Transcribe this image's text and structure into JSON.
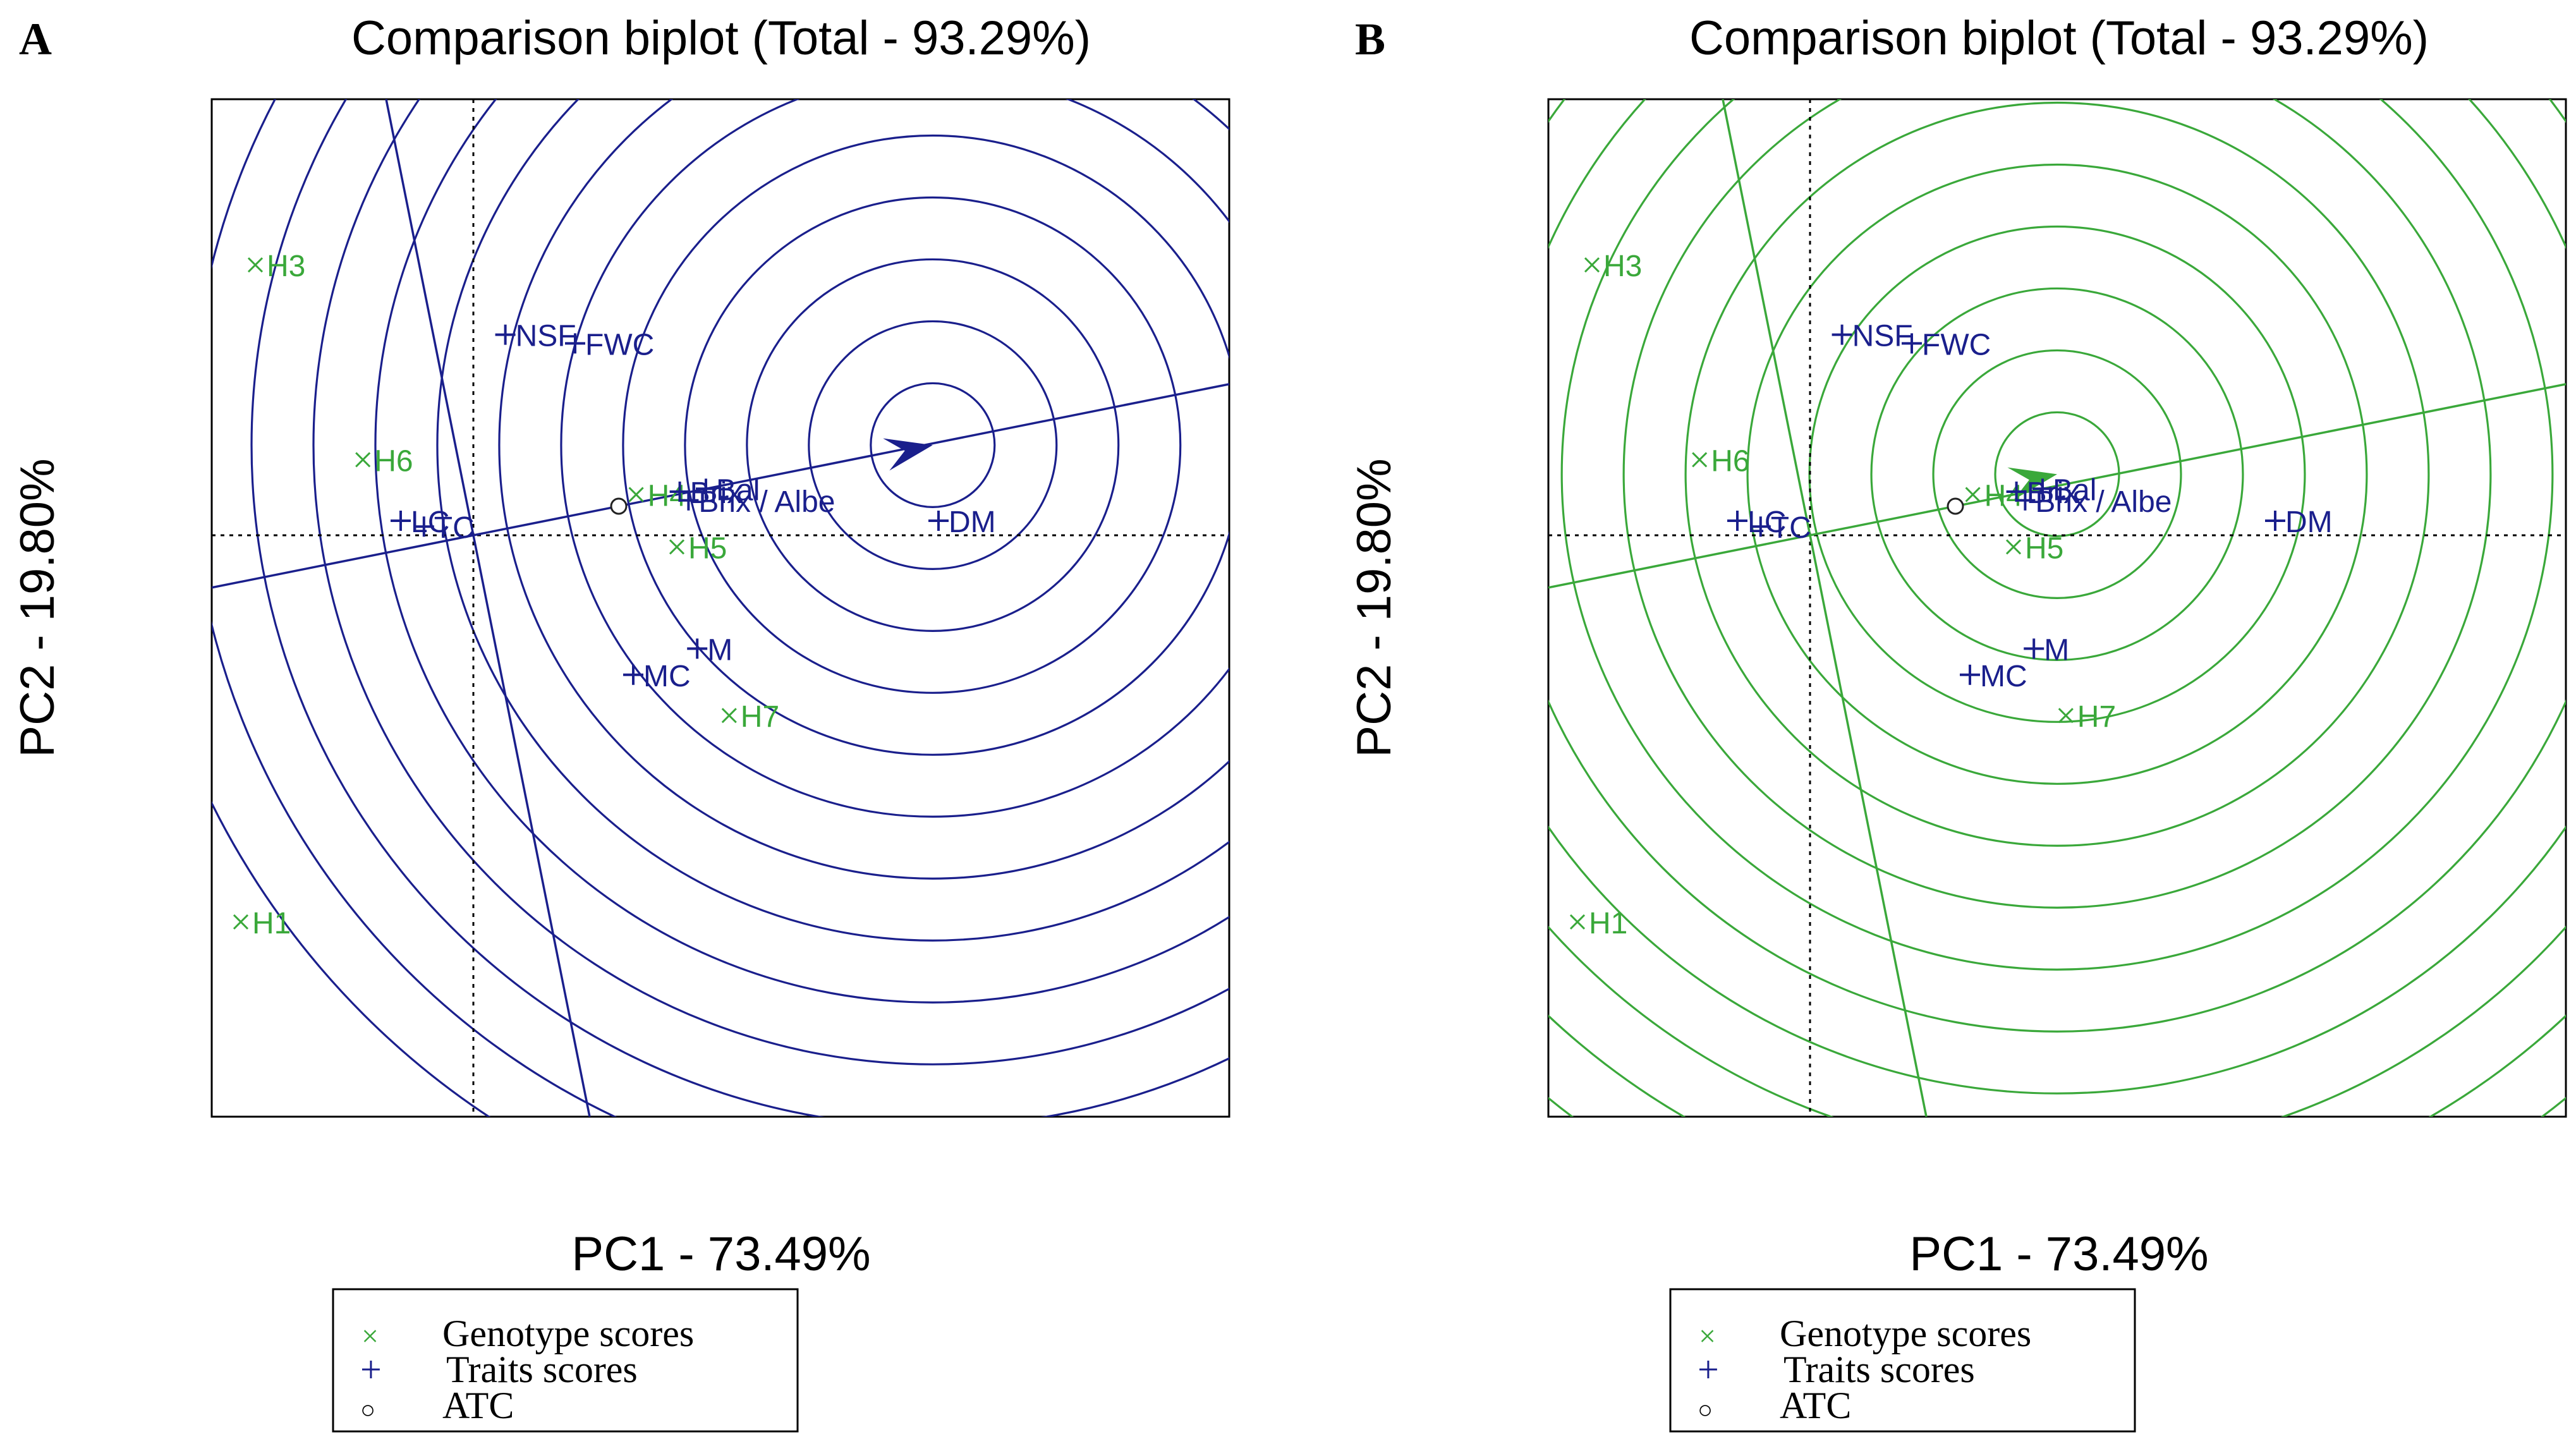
{
  "colors": {
    "trait": "#1a1f8c",
    "genotype": "#3aa83a",
    "circle_a": "#1a1f8c",
    "circle_b": "#3aa83a",
    "axis": "#000000"
  },
  "legend": {
    "genotype_label": "Genotype scores",
    "traits_label": "Traits scores",
    "atc_label": "ATC",
    "genotype_symbol": "×",
    "traits_symbol": "+",
    "atc_symbol": "○"
  },
  "chart_data": [
    {
      "panel_label": "A",
      "type": "scatter",
      "title": "Comparison biplot (Total - 93.29%)",
      "xlabel": "PC1 - 73.49%",
      "ylabel": "PC2 - 19.80%",
      "xlim": [
        -0.9,
        2.6
      ],
      "ylim": [
        -2.0,
        1.5
      ],
      "circle_color_key": "circle_a",
      "genotypes": [
        {
          "label": "H3",
          "x": -0.75,
          "y": 0.93
        },
        {
          "label": "H6",
          "x": -0.38,
          "y": 0.26
        },
        {
          "label": "H1",
          "x": -0.8,
          "y": -1.33
        },
        {
          "label": "H4",
          "x": 0.56,
          "y": 0.14
        },
        {
          "label": "H5",
          "x": 0.7,
          "y": -0.04
        },
        {
          "label": "H7",
          "x": 0.88,
          "y": -0.62
        }
      ],
      "traits": [
        {
          "label": "NSF",
          "x": 0.11,
          "y": 0.69
        },
        {
          "label": "FWC",
          "x": 0.35,
          "y": 0.66
        },
        {
          "label": "LC",
          "x": -0.25,
          "y": 0.05
        },
        {
          "label": "TC",
          "x": -0.17,
          "y": 0.03
        },
        {
          "label": "Brix",
          "x": 0.71,
          "y": 0.15
        },
        {
          "label": "Bal",
          "x": 0.8,
          "y": 0.16
        },
        {
          "label": "Brix / Albe",
          "x": 0.74,
          "y": 0.12
        },
        {
          "label": "DM",
          "x": 1.6,
          "y": 0.05
        },
        {
          "label": "M",
          "x": 0.77,
          "y": -0.39
        },
        {
          "label": "MC",
          "x": 0.55,
          "y": -0.48
        }
      ],
      "atc": {
        "label": "ATC",
        "x": 0.5,
        "y": 0.1
      },
      "ideal": {
        "x": 1.58,
        "y": 0.31
      },
      "ring_step": 0.213,
      "ring_count": 13
    },
    {
      "panel_label": "B",
      "type": "scatter",
      "title": "Comparison biplot (Total - 93.29%)",
      "xlabel": "PC1 - 73.49%",
      "ylabel": "PC2 - 19.80%",
      "xlim": [
        -0.9,
        2.6
      ],
      "ylim": [
        -2.0,
        1.5
      ],
      "circle_color_key": "circle_b",
      "genotypes": [
        {
          "label": "H3",
          "x": -0.75,
          "y": 0.93
        },
        {
          "label": "H6",
          "x": -0.38,
          "y": 0.26
        },
        {
          "label": "H1",
          "x": -0.8,
          "y": -1.33
        },
        {
          "label": "H4",
          "x": 0.56,
          "y": 0.14
        },
        {
          "label": "H5",
          "x": 0.7,
          "y": -0.04
        },
        {
          "label": "H7",
          "x": 0.88,
          "y": -0.62
        }
      ],
      "traits": [
        {
          "label": "NSF",
          "x": 0.11,
          "y": 0.69
        },
        {
          "label": "FWC",
          "x": 0.35,
          "y": 0.66
        },
        {
          "label": "LC",
          "x": -0.25,
          "y": 0.05
        },
        {
          "label": "TC",
          "x": -0.17,
          "y": 0.03
        },
        {
          "label": "Brix",
          "x": 0.71,
          "y": 0.15
        },
        {
          "label": "Bal",
          "x": 0.8,
          "y": 0.16
        },
        {
          "label": "Brix / Albe",
          "x": 0.74,
          "y": 0.12
        },
        {
          "label": "DM",
          "x": 1.6,
          "y": 0.05
        },
        {
          "label": "M",
          "x": 0.77,
          "y": -0.39
        },
        {
          "label": "MC",
          "x": 0.55,
          "y": -0.48
        }
      ],
      "atc": {
        "label": "ATC",
        "x": 0.5,
        "y": 0.1
      },
      "ideal": {
        "x": 0.85,
        "y": 0.21
      },
      "ring_step": 0.213,
      "ring_count": 16
    }
  ]
}
